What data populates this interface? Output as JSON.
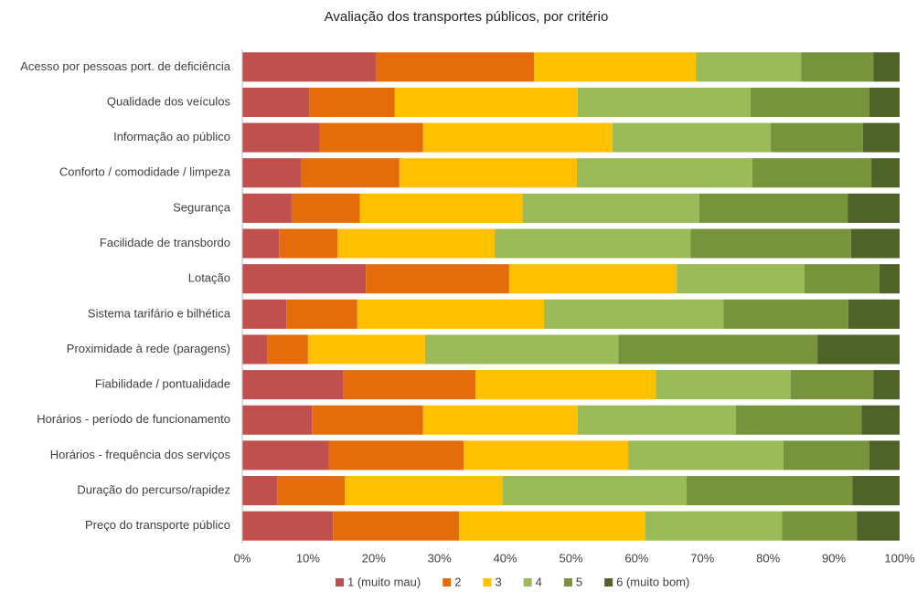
{
  "chart_data": {
    "type": "stacked_bar_horizontal",
    "title": "Avaliação dos transportes públicos, por critério",
    "categories": [
      "Acesso por pessoas port. de deficiência",
      "Qualidade dos veículos",
      "Informação ao público",
      "Conforto / comodidade / limpeza",
      "Segurança",
      "Facilidade de transbordo",
      "Lotação",
      "Sistema tarifário e bilhética",
      "Proximidade à rede (paragens)",
      "Fiabilidade / pontualidade",
      "Horários - período de funcionamento",
      "Horários - frequência dos serviços",
      "Duração do percurso/rapidez",
      "Preço do transporte público"
    ],
    "series": [
      {
        "name": "1 (muito mau)",
        "color": "#c0504d",
        "values": [
          20.3,
          10.2,
          11.8,
          8.9,
          7.5,
          5.6,
          18.8,
          6.7,
          3.8,
          15.4,
          10.6,
          13.2,
          5.3,
          13.8
        ]
      },
      {
        "name": "2",
        "color": "#e46c0a",
        "values": [
          24.1,
          13.0,
          15.7,
          15.0,
          10.4,
          8.9,
          21.8,
          10.8,
          6.2,
          20.1,
          16.9,
          20.5,
          10.3,
          19.2
        ]
      },
      {
        "name": "3",
        "color": "#ffc000",
        "values": [
          24.6,
          27.8,
          28.8,
          27.0,
          24.7,
          23.9,
          25.5,
          28.4,
          17.8,
          27.4,
          23.5,
          25.0,
          24.0,
          28.3
        ]
      },
      {
        "name": "4",
        "color": "#9bbb59",
        "values": [
          16.0,
          26.3,
          24.1,
          26.7,
          26.9,
          29.8,
          19.4,
          27.3,
          29.4,
          20.5,
          24.1,
          23.6,
          28.0,
          20.8
        ]
      },
      {
        "name": "5",
        "color": "#77933c",
        "values": [
          11.0,
          18.1,
          14.0,
          18.1,
          22.6,
          24.4,
          11.4,
          19.0,
          30.3,
          12.6,
          19.1,
          13.1,
          25.2,
          11.4
        ]
      },
      {
        "name": "6 (muito bom)",
        "color": "#4f6228",
        "values": [
          4.0,
          4.6,
          5.6,
          4.3,
          7.9,
          7.4,
          3.1,
          7.8,
          12.5,
          4.0,
          5.8,
          4.6,
          7.2,
          6.5
        ]
      }
    ],
    "xlim": [
      0,
      100
    ],
    "xticks": [
      {
        "value": 0,
        "label": "0%"
      },
      {
        "value": 10,
        "label": "10%"
      },
      {
        "value": 20,
        "label": "20%"
      },
      {
        "value": 30,
        "label": "30%"
      },
      {
        "value": 40,
        "label": "40%"
      },
      {
        "value": 50,
        "label": "50%"
      },
      {
        "value": 60,
        "label": "60%"
      },
      {
        "value": 70,
        "label": "70%"
      },
      {
        "value": 80,
        "label": "80%"
      },
      {
        "value": 90,
        "label": "90%"
      },
      {
        "value": 100,
        "label": "100%"
      }
    ],
    "grid": false,
    "legend": "bottom"
  }
}
